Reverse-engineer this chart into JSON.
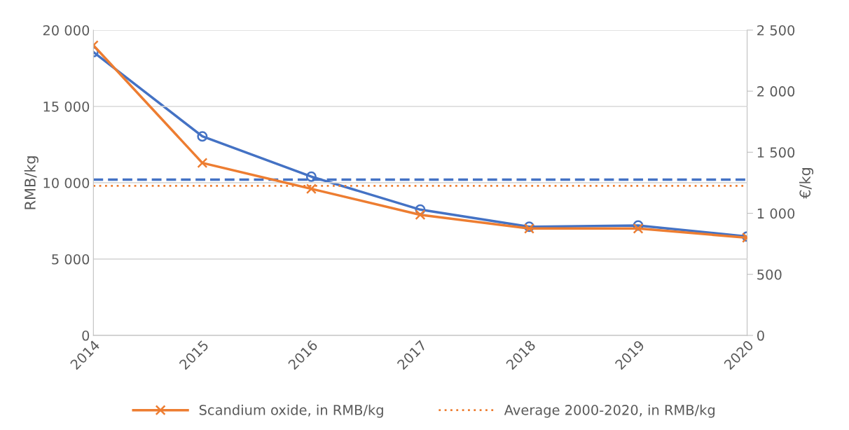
{
  "chart_data": {
    "type": "line",
    "categories": [
      "2014",
      "2015",
      "2016",
      "2017",
      "2018",
      "2019",
      "2020"
    ],
    "series": [
      {
        "name": "Scandium oxide, in RMB/kg",
        "color": "#ed7d31",
        "marker": "cross",
        "values": [
          19000,
          11300,
          9600,
          7900,
          7000,
          7000,
          6400
        ]
      },
      {
        "color": "#4472c4",
        "marker": "circle",
        "axis": "y2",
        "values": [
          2320,
          1630,
          1300,
          1030,
          890,
          900,
          810
        ]
      }
    ],
    "ref_lines": [
      {
        "axis": "y2",
        "value": 1275,
        "color": "#4472c4",
        "line_style": "dashed"
      },
      {
        "axis": "y",
        "value": 9800,
        "label": "Average 2000-2020, in RMB/kg",
        "color": "#ed7d31",
        "line_style": "dotted"
      }
    ],
    "ylabel": "RMB/kg",
    "y2label": "€/kg",
    "ylim": [
      0,
      20000
    ],
    "yticks": [
      0,
      {
        "value": 5000,
        "label": "5 000"
      },
      {
        "value": 10000,
        "label": "10 000"
      },
      {
        "value": 15000,
        "label": "15 000"
      },
      {
        "value": 20000,
        "label": "20 000"
      }
    ],
    "y2lim": [
      0,
      2500
    ],
    "y2ticks": [
      0,
      500,
      {
        "value": 1000,
        "label": "1 000"
      },
      {
        "value": 1500,
        "label": "1 500"
      },
      {
        "value": 2000,
        "label": "2 000"
      },
      {
        "value": 2500,
        "label": "2 500"
      }
    ],
    "grid": "y",
    "legend": "bottom"
  }
}
